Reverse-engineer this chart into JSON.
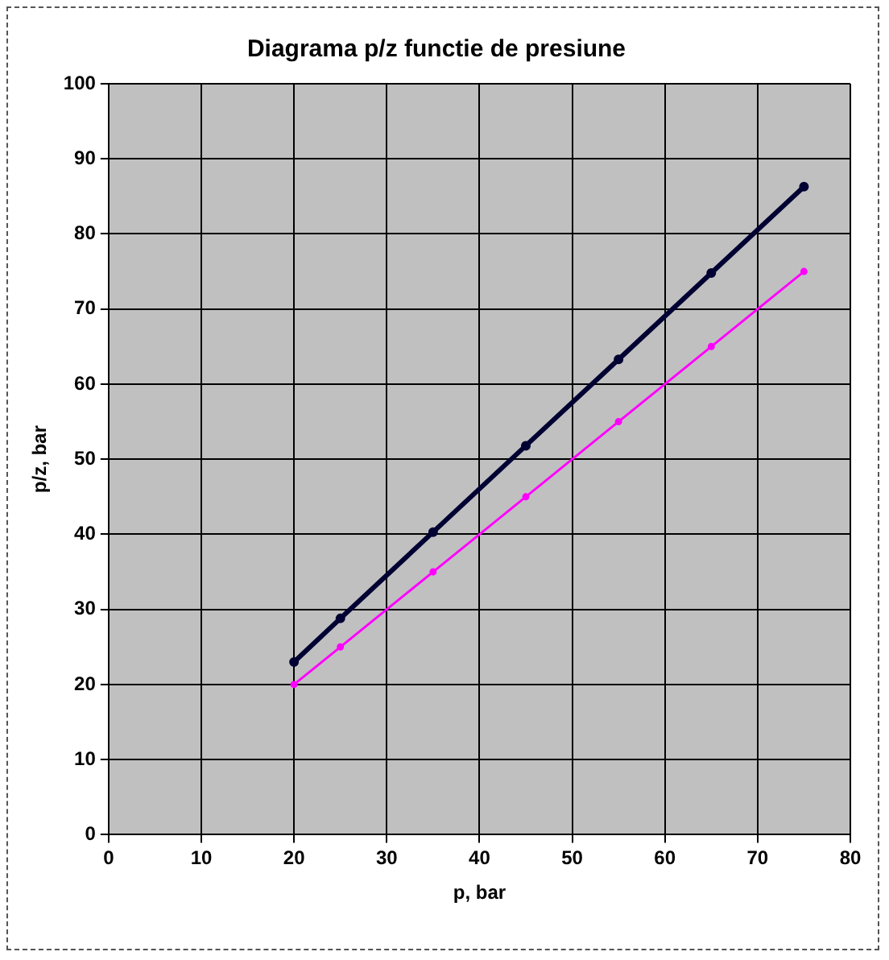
{
  "chart_data": {
    "type": "line",
    "title": "Diagrama p/z functie de presiune",
    "xlabel": "p, bar",
    "ylabel": "p/z, bar",
    "x": [
      20,
      25,
      35,
      45,
      55,
      65,
      75
    ],
    "series": [
      {
        "color": "#000033",
        "values": [
          23,
          28.8,
          40.3,
          51.8,
          63.3,
          74.8,
          86.3
        ]
      },
      {
        "color": "#ff00ff",
        "values": [
          20,
          25,
          35,
          45,
          55,
          65,
          75
        ]
      }
    ],
    "xlim": [
      0,
      80
    ],
    "xticks": [
      0,
      10,
      20,
      30,
      40,
      50,
      60,
      70,
      80
    ],
    "ylim": [
      0,
      100
    ],
    "yticks": [
      0,
      10,
      20,
      30,
      40,
      50,
      60,
      70,
      80,
      90,
      100
    ],
    "grid": true,
    "legend": false,
    "marker": "circle",
    "line_style": "solid"
  }
}
